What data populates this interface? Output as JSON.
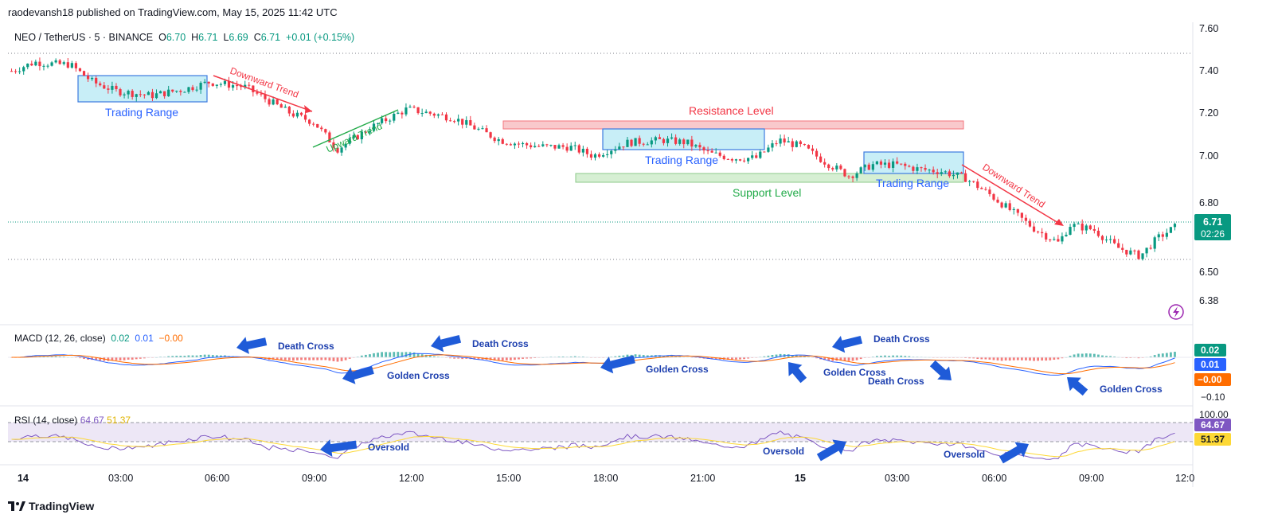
{
  "header": {
    "published": "raodevansh18 published on TradingView.com, May 15, 2025 11:42 UTC"
  },
  "symbol": {
    "name": "NEO / TetherUS · 5 · BINANCE",
    "o_label": "O",
    "o": "6.70",
    "h_label": "H",
    "h": "6.71",
    "l_label": "L",
    "l": "6.69",
    "c_label": "C",
    "c": "6.71",
    "change": "+0.01 (+0.15%)"
  },
  "price_axis": {
    "ticks": [
      "7.60",
      "7.40",
      "7.20",
      "7.00",
      "6.80",
      "6.50",
      "6.38"
    ],
    "current": "6.71",
    "countdown": "02:26"
  },
  "time_axis": {
    "ticks": [
      "14",
      "03:00",
      "06:00",
      "09:00",
      "12:00",
      "15:00",
      "18:00",
      "21:00",
      "15",
      "03:00",
      "06:00",
      "09:00",
      "12:0"
    ]
  },
  "macd": {
    "title": "MACD (12, 26, close)",
    "v1": "0.02",
    "v2": "0.01",
    "v3": "−0.00",
    "axis": [
      "0.02",
      "0.01",
      "−0.00",
      "−0.10"
    ]
  },
  "rsi": {
    "title": "RSI (14, close)",
    "v1": "64.67",
    "v2": "51.37",
    "axis": [
      "100.00",
      "64.67",
      "51.37"
    ]
  },
  "annotations": {
    "trading_range": "Trading Range",
    "downward_trend": "Downward Trend",
    "upward_trend": "Upward Trend",
    "resistance": "Resistance Level",
    "support": "Support Level",
    "death_cross": "Death Cross",
    "golden_cross": "Golden Cross",
    "oversold": "Oversold"
  },
  "footer": {
    "brand": "TradingView"
  },
  "colors": {
    "up": "#089981",
    "down": "#f23645",
    "macd": "#2962ff",
    "signal": "#ff6d00",
    "rsi": "#7e57c2",
    "rsi_ma": "#fdd835",
    "arrow": "#1f5bd8"
  },
  "chart_data": {
    "type": "candlestick",
    "title": "NEO / TetherUS · 5 · BINANCE",
    "ylim": [
      6.38,
      7.6
    ],
    "path_points": [
      [
        0,
        7.41
      ],
      [
        0.02,
        7.45
      ],
      [
        0.04,
        7.44
      ],
      [
        0.05,
        7.44
      ],
      [
        0.07,
        7.36
      ],
      [
        0.09,
        7.32
      ],
      [
        0.12,
        7.3
      ],
      [
        0.15,
        7.33
      ],
      [
        0.17,
        7.36
      ],
      [
        0.2,
        7.34
      ],
      [
        0.22,
        7.28
      ],
      [
        0.24,
        7.22
      ],
      [
        0.26,
        7.18
      ],
      [
        0.28,
        7.06
      ],
      [
        0.31,
        7.16
      ],
      [
        0.34,
        7.24
      ],
      [
        0.36,
        7.22
      ],
      [
        0.38,
        7.2
      ],
      [
        0.4,
        7.15
      ],
      [
        0.42,
        7.1
      ],
      [
        0.44,
        7.08
      ],
      [
        0.46,
        7.07
      ],
      [
        0.48,
        7.07
      ],
      [
        0.5,
        7.03
      ],
      [
        0.53,
        7.09
      ],
      [
        0.56,
        7.1
      ],
      [
        0.58,
        7.09
      ],
      [
        0.6,
        7.04
      ],
      [
        0.62,
        7.02
      ],
      [
        0.64,
        7.02
      ],
      [
        0.66,
        7.1
      ],
      [
        0.68,
        7.07
      ],
      [
        0.7,
        7.0
      ],
      [
        0.72,
        6.94
      ],
      [
        0.74,
        6.99
      ],
      [
        0.76,
        6.99
      ],
      [
        0.78,
        6.97
      ],
      [
        0.8,
        6.96
      ],
      [
        0.82,
        6.93
      ],
      [
        0.84,
        6.86
      ],
      [
        0.86,
        6.78
      ],
      [
        0.88,
        6.7
      ],
      [
        0.9,
        6.64
      ],
      [
        0.91,
        6.72
      ],
      [
        0.93,
        6.7
      ],
      [
        0.95,
        6.62
      ],
      [
        0.97,
        6.58
      ],
      [
        0.985,
        6.66
      ],
      [
        1.0,
        6.71
      ]
    ],
    "resistance_level": [
      7.13,
      7.17
    ],
    "support_level": [
      6.89,
      6.93
    ],
    "current_price": 6.71
  }
}
